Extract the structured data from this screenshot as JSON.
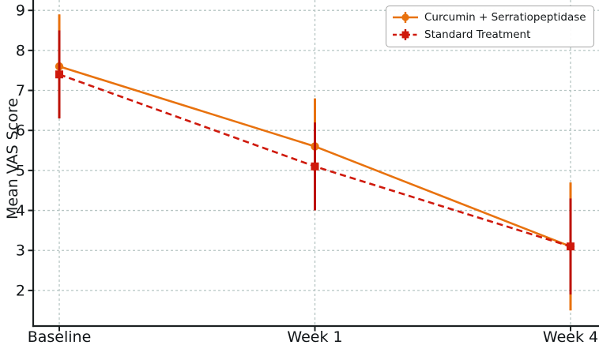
{
  "chart_data": {
    "type": "line",
    "title": "",
    "xlabel": "",
    "ylabel": "Mean VAS Score",
    "categories": [
      "Baseline",
      "Week 1",
      "Week 4"
    ],
    "series": [
      {
        "name": "Curcumin + Serratiopeptidase",
        "values": [
          7.6,
          5.6,
          3.1
        ],
        "errors": [
          1.3,
          1.2,
          1.6
        ],
        "color": "#e8720e",
        "error_color": "#e8720e",
        "line_style": "solid",
        "marker": "circle"
      },
      {
        "name": "Standard Treatment",
        "values": [
          7.4,
          5.1,
          3.1
        ],
        "errors": [
          1.1,
          1.1,
          1.2
        ],
        "color": "#cf1a0d",
        "error_color": "#bd1205",
        "line_style": "dashed",
        "marker": "square"
      }
    ],
    "yticks": [
      2,
      3,
      4,
      5,
      6,
      7,
      8,
      9
    ],
    "ylim": [
      1.11,
      9.26
    ],
    "grid": true,
    "legend_position": "upper right"
  },
  "axis_style": {
    "grid_color": "#b6c5c3",
    "spine_color": "#1b2021",
    "text_color": "#101417"
  }
}
